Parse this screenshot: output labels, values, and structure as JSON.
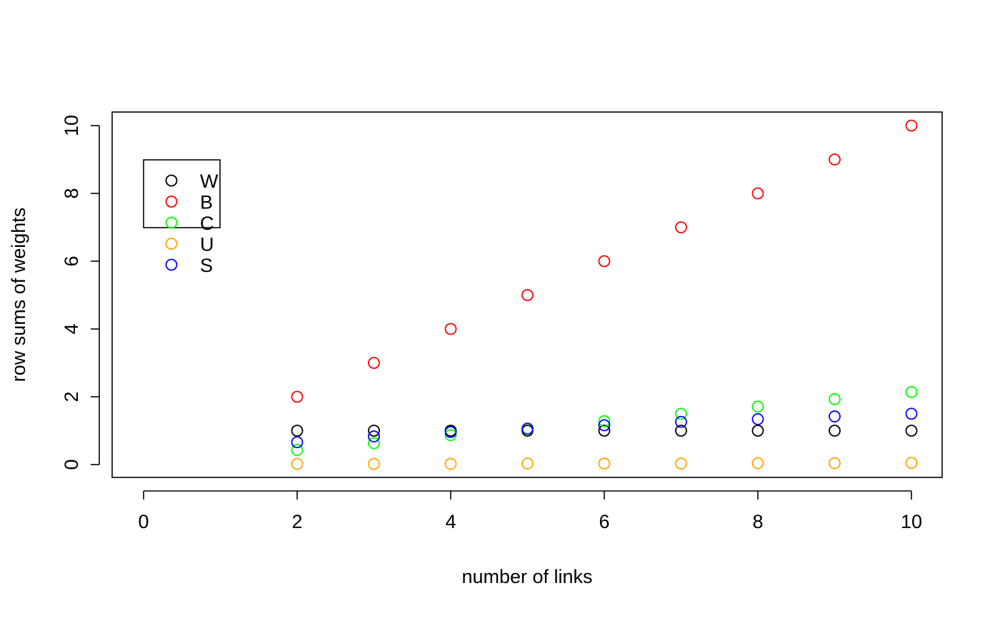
{
  "chart_data": {
    "type": "scatter",
    "title": "",
    "xlabel": "number of links",
    "ylabel": "row sums of weights",
    "xlim": [
      0,
      10
    ],
    "ylim": [
      0,
      10
    ],
    "x_ticks": [
      0,
      2,
      4,
      6,
      8,
      10
    ],
    "y_ticks": [
      0,
      2,
      4,
      6,
      8,
      10
    ],
    "marker": "open-circle",
    "grid": false,
    "legend_position": "top-left",
    "series": [
      {
        "name": "W",
        "color": "#000000",
        "x": [
          2,
          3,
          4,
          5,
          6,
          7,
          8,
          9,
          10
        ],
        "y": [
          1,
          1,
          1,
          1,
          1,
          1,
          1,
          1,
          1
        ]
      },
      {
        "name": "B",
        "color": "#ff0000",
        "x": [
          2,
          3,
          4,
          5,
          6,
          7,
          8,
          9,
          10
        ],
        "y": [
          2,
          3,
          4,
          5,
          6,
          7,
          8,
          9,
          10
        ]
      },
      {
        "name": "C",
        "color": "#00ff00",
        "x": [
          2,
          3,
          4,
          5,
          6,
          7,
          8,
          9,
          10
        ],
        "y": [
          0.43,
          0.63,
          0.87,
          1.05,
          1.28,
          1.5,
          1.71,
          1.93,
          2.14
        ]
      },
      {
        "name": "U",
        "color": "#ffa500",
        "x": [
          2,
          3,
          4,
          5,
          6,
          7,
          8,
          9,
          10
        ],
        "y": [
          0.02,
          0.02,
          0.02,
          0.03,
          0.03,
          0.03,
          0.04,
          0.04,
          0.05
        ]
      },
      {
        "name": "S",
        "color": "#0000ff",
        "x": [
          2,
          3,
          4,
          5,
          6,
          7,
          8,
          9,
          10
        ],
        "y": [
          0.66,
          0.83,
          0.96,
          1.06,
          1.16,
          1.26,
          1.34,
          1.42,
          1.5
        ]
      }
    ]
  }
}
